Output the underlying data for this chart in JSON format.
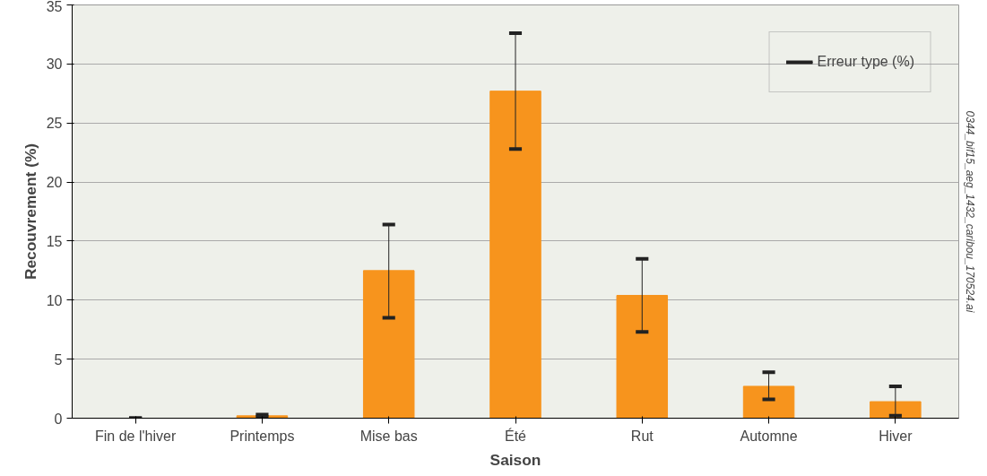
{
  "chart_data": {
    "type": "bar",
    "xlabel": "Saison",
    "ylabel": "Recouvrement (%)",
    "categories": [
      "Fin de l'hiver",
      "Printemps",
      "Mise bas",
      "Été",
      "Rut",
      "Automne",
      "Hiver"
    ],
    "values": [
      0,
      0.2,
      12.5,
      27.7,
      10.4,
      2.7,
      1.4
    ],
    "errors": [
      [
        0,
        0
      ],
      [
        0.1,
        0.3
      ],
      [
        8.5,
        16.4
      ],
      [
        22.8,
        32.6
      ],
      [
        7.3,
        13.5
      ],
      [
        1.6,
        3.9
      ],
      [
        0.2,
        2.7
      ]
    ],
    "color": "#f7941d",
    "ylim": [
      0,
      35
    ],
    "yticks": [
      0,
      5,
      10,
      15,
      20,
      25,
      30,
      35
    ],
    "grid": "y",
    "annotations": [
      "Erreur type (%)",
      "0344_bif15_aeg_1432_caribou_170524.ai"
    ]
  }
}
